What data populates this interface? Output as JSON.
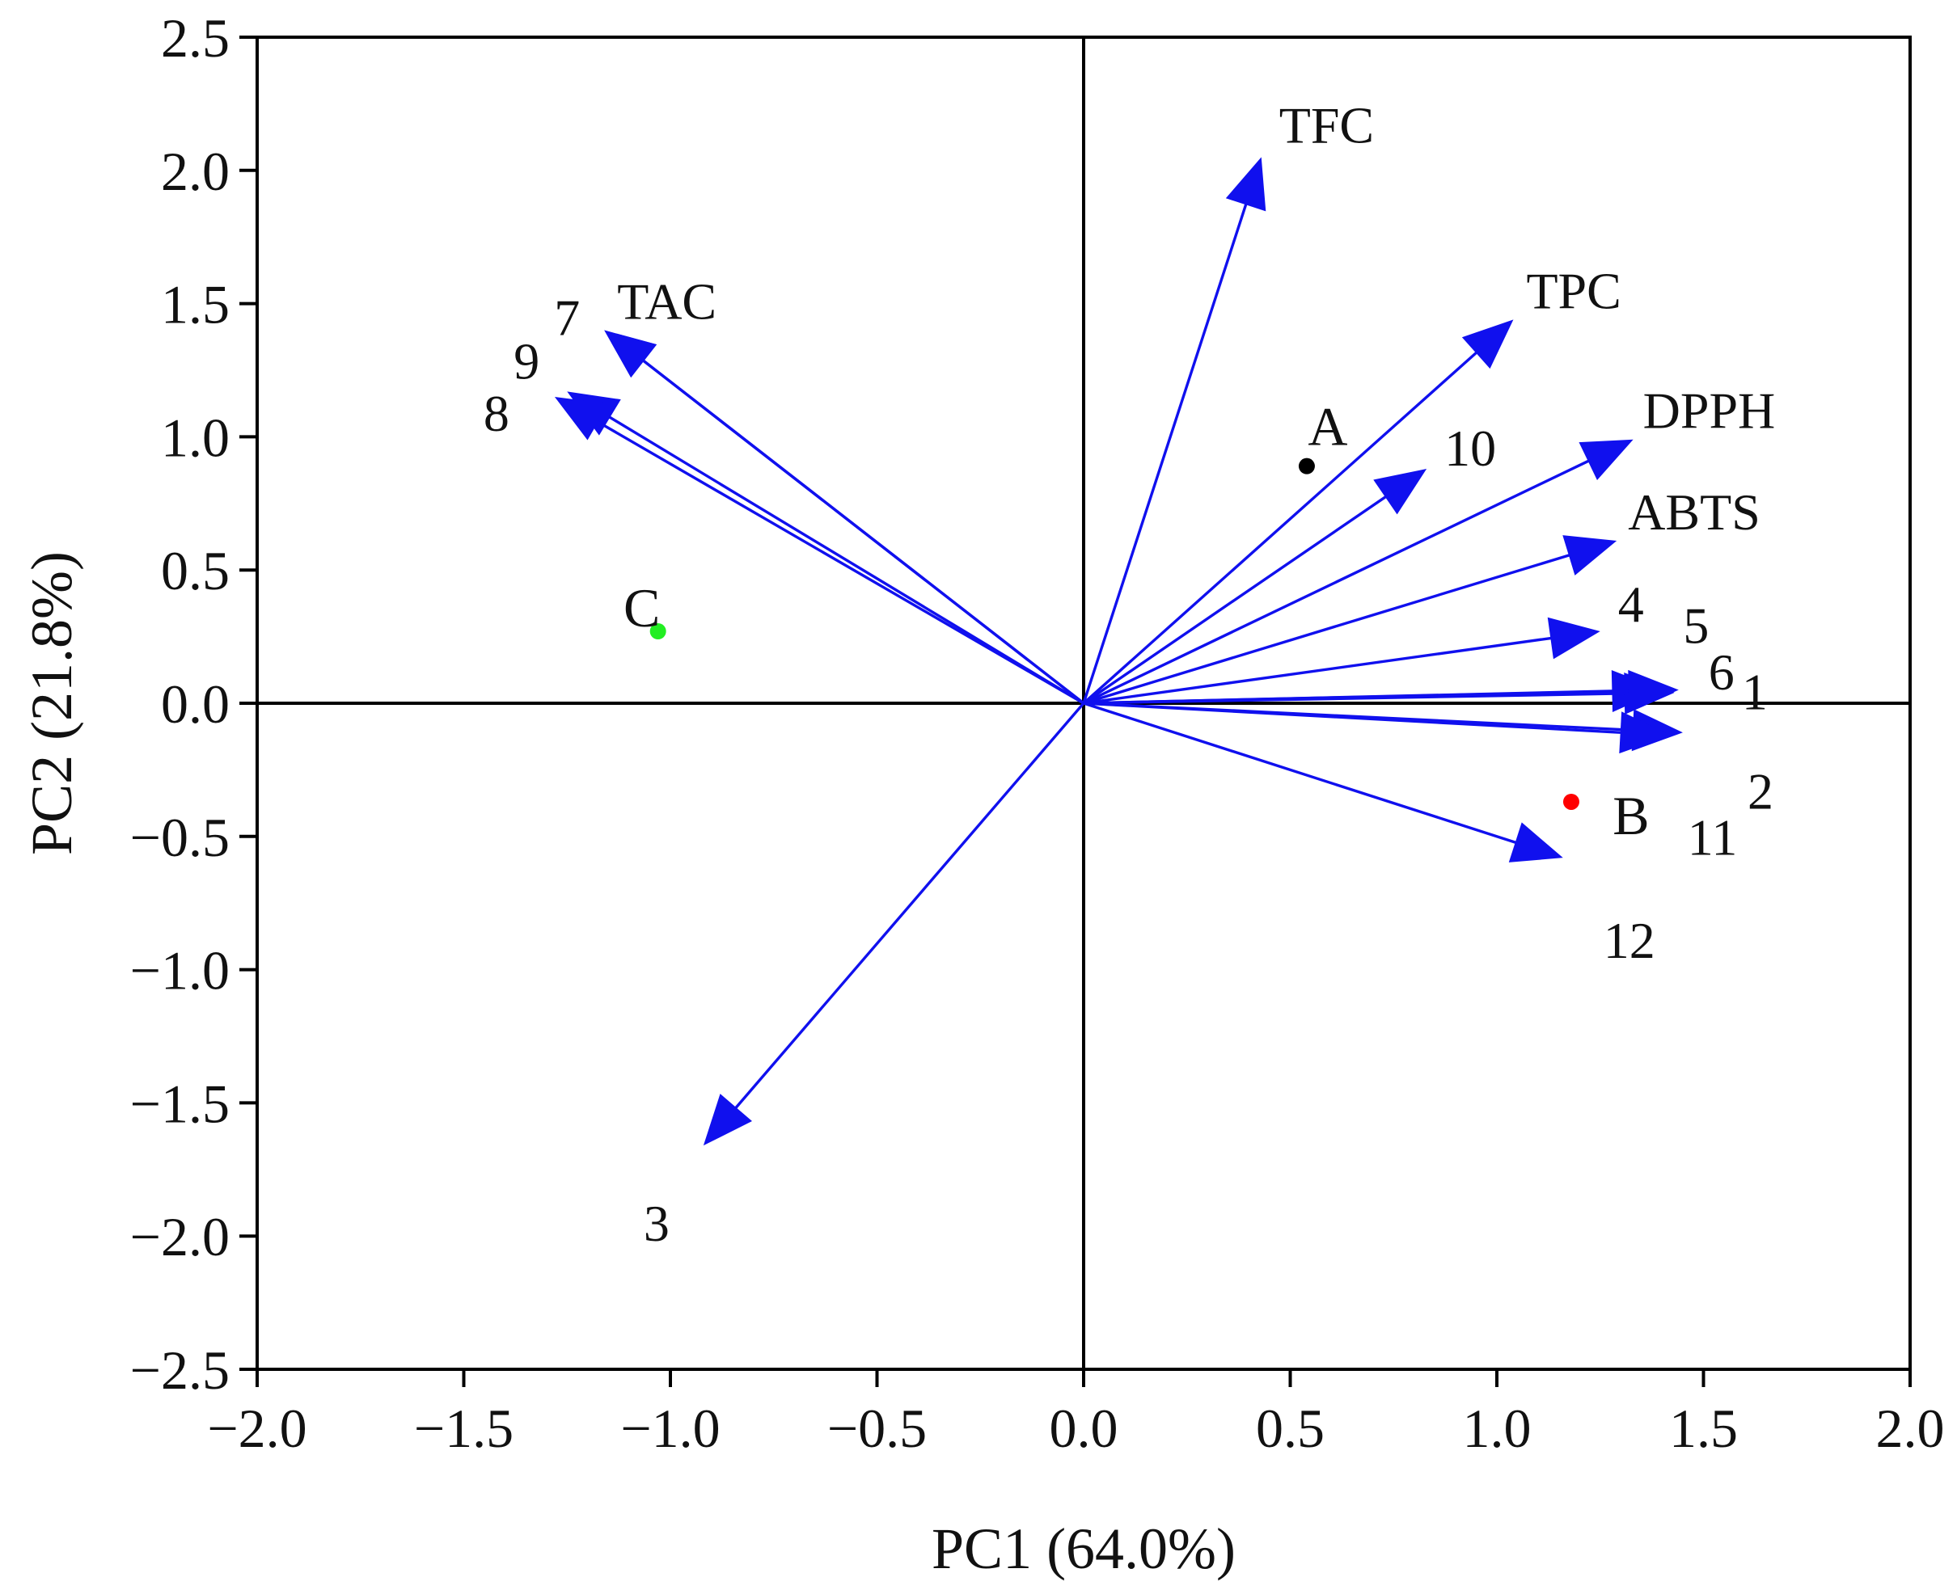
{
  "chart_data": {
    "type": "scatter",
    "subtype": "pca-biplot",
    "xlabel": "PC1 (64.0%)",
    "ylabel": "PC2 (21.8%)",
    "xlim": [
      -2.0,
      2.0
    ],
    "ylim": [
      -2.5,
      2.5
    ],
    "xticks": [
      -2.0,
      -1.5,
      -1.0,
      -0.5,
      0.0,
      0.5,
      1.0,
      1.5,
      2.0
    ],
    "yticks": [
      -2.5,
      -2.0,
      -1.5,
      -1.0,
      -0.5,
      0.0,
      0.5,
      1.0,
      1.5,
      2.0,
      2.5
    ],
    "xtick_labels": [
      "−2.0",
      "−1.5",
      "−1.0",
      "−0.5",
      "0.0",
      "0.5",
      "1.0",
      "1.5",
      "2.0"
    ],
    "ytick_labels": [
      "−2.5",
      "−2.0",
      "−1.5",
      "−1.0",
      "−0.5",
      "0.0",
      "0.5",
      "1.0",
      "1.5",
      "2.0",
      "2.5"
    ],
    "loading_color": "#1010ee",
    "loadings": [
      {
        "label": "TFC",
        "x": 0.43,
        "y": 2.05
      },
      {
        "label": "TPC",
        "x": 1.04,
        "y": 1.44
      },
      {
        "label": "DPPH",
        "x": 1.33,
        "y": 0.99
      },
      {
        "label": "ABTS",
        "x": 1.29,
        "y": 0.61
      },
      {
        "label": "TAC",
        "x": -1.16,
        "y": 1.4
      },
      {
        "label": "7",
        "x": -1.16,
        "y": 1.4
      },
      {
        "label": "9",
        "x": -1.25,
        "y": 1.17
      },
      {
        "label": "8",
        "x": -1.28,
        "y": 1.15
      },
      {
        "label": "10",
        "x": 0.83,
        "y": 0.88
      },
      {
        "label": "4",
        "x": 1.25,
        "y": 0.27
      },
      {
        "label": "5",
        "x": 1.4,
        "y": 0.05
      },
      {
        "label": "6",
        "x": 1.43,
        "y": 0.04
      },
      {
        "label": "1",
        "x": 1.44,
        "y": 0.05
      },
      {
        "label": "2",
        "x": 1.45,
        "y": -0.11
      },
      {
        "label": "11",
        "x": 1.42,
        "y": -0.12
      },
      {
        "label": "12",
        "x": 1.16,
        "y": -0.58
      },
      {
        "label": "3",
        "x": -0.92,
        "y": -1.66
      }
    ],
    "scores": [
      {
        "label": "A",
        "x": 0.54,
        "y": 0.89,
        "color": "#000000"
      },
      {
        "label": "B",
        "x": 1.18,
        "y": -0.37,
        "color": "#ff0000"
      },
      {
        "label": "C",
        "x": -1.03,
        "y": 0.27,
        "color": "#22ee22"
      }
    ]
  }
}
